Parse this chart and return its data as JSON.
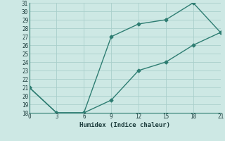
{
  "title": "",
  "xlabel": "Humidex (Indice chaleur)",
  "xlim": [
    0,
    21
  ],
  "ylim": [
    18,
    31
  ],
  "xticks": [
    0,
    3,
    6,
    9,
    12,
    15,
    18,
    21
  ],
  "yticks": [
    18,
    19,
    20,
    21,
    22,
    23,
    24,
    25,
    26,
    27,
    28,
    29,
    30,
    31
  ],
  "line1_x": [
    0,
    3,
    6,
    9,
    12,
    15,
    18,
    21
  ],
  "line1_y": [
    21,
    18,
    18,
    27,
    28.5,
    29,
    31,
    27.5
  ],
  "line2_x": [
    0,
    3,
    6,
    9,
    12,
    15,
    18,
    21
  ],
  "line2_y": [
    21,
    18,
    18,
    19.5,
    23,
    24,
    26,
    27.5
  ],
  "line_color": "#2e7d72",
  "bg_color": "#cde8e4",
  "grid_color": "#aacfcb",
  "marker": "D",
  "marker_size": 2.5,
  "line_width": 1.0
}
